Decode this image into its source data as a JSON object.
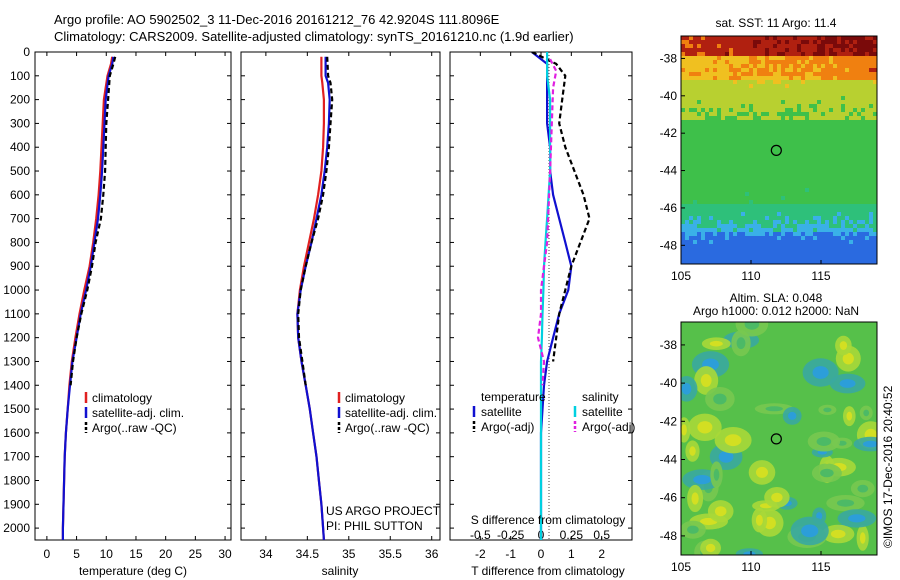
{
  "header": {
    "line1": "Argo profile: AO 5902502_3 11-Dec-2016 20161212_76 42.9204S 111.8096E",
    "line2": "Climatology: CARS2009. Satellite-adjusted climatology: synTS_20161210.nc (1.9d earlier)"
  },
  "credits": {
    "line1": "US ARGO PROJECT",
    "line2": "PI: PHIL SUTTON",
    "side": "©IMOS 17-Dec-2016 20:40:52"
  },
  "colors": {
    "climatology": "#e02020",
    "satellite": "#1010d0",
    "argo": "#000000",
    "sal_satellite": "#00d0e0",
    "sal_argo": "#e020e0"
  },
  "chart_data": [
    {
      "type": "line",
      "id": "temperature",
      "xlabel": "temperature (deg C)",
      "ylabel": "",
      "xlim": [
        -2,
        31
      ],
      "ylim": [
        2050,
        0
      ],
      "xticks": [
        0,
        5,
        10,
        15,
        20,
        25,
        30
      ],
      "yticks": [
        0,
        100,
        200,
        300,
        400,
        500,
        600,
        700,
        800,
        900,
        1000,
        1100,
        1200,
        1300,
        1400,
        1500,
        1600,
        1700,
        1800,
        1900,
        2000
      ],
      "legend": [
        "climatology",
        "satellite-adj. clim.",
        "Argo(..raw -QC)"
      ],
      "series": [
        {
          "name": "climatology",
          "style": "solid",
          "color": "#e02020",
          "x": [
            11.0,
            10.8,
            10.2,
            9.6,
            9.4,
            9.2,
            9.0,
            8.7,
            8.3,
            7.8,
            7.2,
            6.3,
            5.5,
            4.8,
            4.2,
            3.8,
            3.5,
            3.2,
            3.0,
            2.9,
            2.8,
            2.7,
            2.7
          ],
          "y": [
            20,
            50,
            100,
            200,
            300,
            400,
            500,
            600,
            700,
            800,
            900,
            1000,
            1100,
            1200,
            1300,
            1400,
            1500,
            1600,
            1700,
            1800,
            1900,
            2000,
            2050
          ]
        },
        {
          "name": "satellite-adj. clim.",
          "style": "solid",
          "color": "#1010d0",
          "x": [
            11.2,
            11.0,
            10.4,
            9.9,
            9.7,
            9.5,
            9.3,
            9.0,
            8.6,
            8.0,
            7.4,
            6.6,
            5.7,
            5.0,
            4.3,
            3.9,
            3.5,
            3.2,
            3.0,
            2.9,
            2.8,
            2.7,
            2.7
          ],
          "y": [
            20,
            50,
            100,
            200,
            300,
            400,
            500,
            600,
            700,
            800,
            900,
            1000,
            1100,
            1200,
            1300,
            1400,
            1500,
            1600,
            1700,
            1800,
            1900,
            2000,
            2050
          ]
        },
        {
          "name": "Argo(..raw -QC)",
          "style": "dashed",
          "color": "#000000",
          "x": [
            11.5,
            11.2,
            10.6,
            10.3,
            10.0,
            9.9,
            9.8,
            9.5,
            9.1,
            8.2,
            7.6,
            6.8,
            5.8,
            5.0,
            4.4,
            4.0
          ],
          "y": [
            20,
            50,
            100,
            200,
            300,
            400,
            500,
            600,
            700,
            800,
            900,
            1000,
            1100,
            1200,
            1300,
            1400
          ]
        }
      ]
    },
    {
      "type": "line",
      "id": "salinity",
      "xlabel": "salinity",
      "xlim": [
        33.7,
        36.1
      ],
      "ylim": [
        2050,
        0
      ],
      "xticks": [
        34,
        34.5,
        35,
        35.5,
        36
      ],
      "legend": [
        "climatology",
        "satellite-adj. clim.",
        "Argo(..raw -QC)"
      ],
      "series": [
        {
          "name": "climatology",
          "style": "solid",
          "color": "#e02020",
          "x": [
            34.67,
            34.67,
            34.68,
            34.7,
            34.7,
            34.69,
            34.67,
            34.63,
            34.58,
            34.52,
            34.46,
            34.41,
            34.38,
            34.39,
            34.43,
            34.48,
            34.53,
            34.57,
            34.61,
            34.64,
            34.67,
            34.69,
            34.7
          ],
          "y": [
            20,
            100,
            130,
            200,
            300,
            400,
            500,
            600,
            700,
            800,
            900,
            1000,
            1100,
            1200,
            1300,
            1400,
            1500,
            1600,
            1700,
            1800,
            1900,
            2000,
            2050
          ]
        },
        {
          "name": "satellite-adj. clim.",
          "style": "solid",
          "color": "#1010d0",
          "x": [
            34.72,
            34.72,
            34.75,
            34.77,
            34.76,
            34.74,
            34.71,
            34.67,
            34.61,
            34.55,
            34.48,
            34.42,
            34.38,
            34.39,
            34.43,
            34.48,
            34.53,
            34.57,
            34.61,
            34.64,
            34.67,
            34.69,
            34.7
          ],
          "y": [
            20,
            100,
            130,
            200,
            300,
            400,
            500,
            600,
            700,
            800,
            900,
            1000,
            1100,
            1200,
            1300,
            1400,
            1500,
            1600,
            1700,
            1800,
            1900,
            2000,
            2050
          ]
        },
        {
          "name": "Argo(..raw -QC)",
          "style": "dashed",
          "color": "#000000",
          "x": [
            34.74,
            34.75,
            34.78,
            34.8,
            34.78,
            34.76,
            34.73,
            34.69,
            34.63,
            34.55,
            34.48,
            34.42,
            34.39,
            34.4,
            34.44,
            34.48
          ],
          "y": [
            20,
            100,
            130,
            200,
            300,
            400,
            500,
            600,
            700,
            800,
            900,
            1000,
            1100,
            1200,
            1300,
            1400
          ]
        }
      ]
    },
    {
      "type": "line",
      "id": "differences",
      "xlabel": "T difference from climatology",
      "xlabel2": "S difference from climatology",
      "xlim": [
        -3,
        3
      ],
      "ylim": [
        2050,
        0
      ],
      "xticks": [
        -2,
        -1,
        0,
        1,
        2
      ],
      "xticks2": [
        "-0.5",
        "-0.25",
        "0",
        "0.25",
        "0.5"
      ],
      "legend_groups": [
        "temperature",
        "salinity"
      ],
      "legend": [
        "satellite",
        "Argo(-adj)",
        "satellite",
        "Argo(-adj)"
      ],
      "series": [
        {
          "name": "temperature satellite",
          "style": "solid",
          "color": "#1010d0",
          "x": [
            -0.3,
            0.2,
            0.2,
            0.2,
            0.3,
            0.3,
            0.4,
            0.6,
            0.8,
            1.0,
            0.9,
            0.6,
            0.4,
            0.2,
            0.1,
            0.05,
            0.0,
            0.0,
            0.0,
            0.0,
            0.0
          ],
          "y": [
            0,
            50,
            100,
            300,
            400,
            500,
            600,
            700,
            800,
            900,
            1000,
            1100,
            1200,
            1300,
            1400,
            1500,
            1600,
            1700,
            1800,
            1900,
            2050
          ]
        },
        {
          "name": "temperature Argo(-adj)",
          "style": "dashed",
          "color": "#000000",
          "x": [
            -0.3,
            0.5,
            0.8,
            0.7,
            0.6,
            0.8,
            1.1,
            1.4,
            1.6,
            1.3,
            1.0,
            0.8,
            0.6,
            0.5,
            0.4
          ],
          "y": [
            0,
            50,
            100,
            200,
            300,
            400,
            500,
            600,
            700,
            800,
            900,
            1000,
            1100,
            1200,
            1300
          ]
        },
        {
          "name": "salinity satellite",
          "style": "solid",
          "color": "#00d0e0",
          "x": [
            0.2,
            0.2,
            0.3,
            0.3,
            0.3,
            0.3,
            0.25,
            0.2,
            0.15,
            0.1,
            0.08,
            0.05,
            0.03,
            0.0,
            0.0,
            0.0
          ],
          "y": [
            0,
            100,
            200,
            300,
            400,
            500,
            600,
            700,
            800,
            900,
            1000,
            1100,
            1200,
            1300,
            1600,
            2050
          ]
        },
        {
          "name": "salinity Argo(-adj)",
          "style": "dashed",
          "color": "#e020e0",
          "x": [
            0.3,
            0.5,
            0.4,
            0.3,
            0.2,
            0.1,
            0.0,
            0.0,
            -0.1,
            0.1,
            0.05
          ],
          "y": [
            30,
            80,
            150,
            500,
            800,
            900,
            1000,
            1100,
            1200,
            1300,
            1400
          ]
        }
      ]
    },
    {
      "type": "heatmap",
      "id": "sst-map",
      "title": "sat. SST: 11 Argo: 11.4",
      "xticks": [
        105,
        110,
        115
      ],
      "yticks": [
        -38,
        -40,
        -42,
        -44,
        -46,
        -48
      ],
      "xlim": [
        105,
        119
      ],
      "ylim": [
        -49,
        -36.8
      ],
      "marker": {
        "lon": 111.8096,
        "lat": -42.9204
      }
    },
    {
      "type": "heatmap",
      "id": "sla-map",
      "title": "Altim. SLA: 0.048",
      "subtitle": "Argo h1000: 0.012 h2000: NaN",
      "xticks": [
        105,
        110,
        115
      ],
      "yticks": [
        -38,
        -40,
        -42,
        -44,
        -46,
        -48
      ],
      "xlim": [
        105,
        119
      ],
      "ylim": [
        -49,
        -36.8
      ],
      "marker": {
        "lon": 111.8096,
        "lat": -42.9204
      }
    }
  ]
}
